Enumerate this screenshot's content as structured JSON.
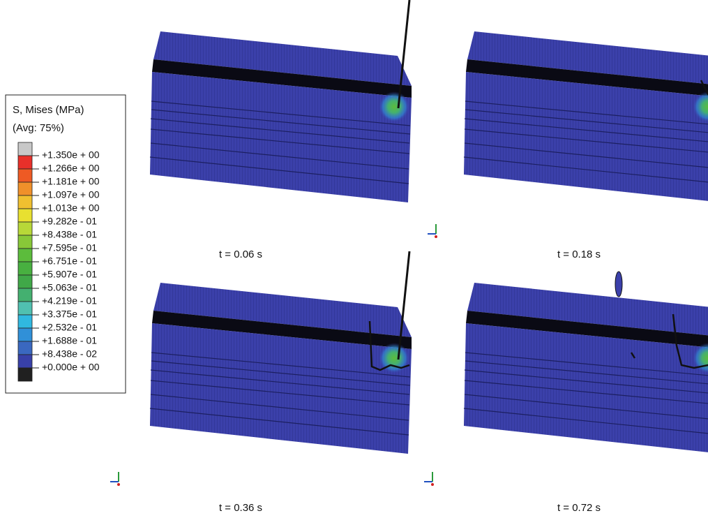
{
  "legend": {
    "title": "S, Mises (MPa)",
    "subtitle": "(Avg: 75%)",
    "labels": [
      "+1.350e + 00",
      "+1.266e + 00",
      "+1.181e + 00",
      "+1.097e + 00",
      "+1.013e + 00",
      "+9.282e - 01",
      "+8.438e - 01",
      "+7.595e - 01",
      "+6.751e - 01",
      "+5.907e - 01",
      "+5.063e - 01",
      "+4.219e - 01",
      "+3.375e - 01",
      "+2.532e - 01",
      "+1.688e - 01",
      "+8.438e - 02",
      "+0.000e + 00"
    ],
    "colors": [
      "#c8c8c8",
      "#e8302a",
      "#ee5a24",
      "#f0902a",
      "#f0c030",
      "#e8e030",
      "#b8d838",
      "#88c838",
      "#5cbc3c",
      "#48b040",
      "#40a848",
      "#44b070",
      "#50c0b0",
      "#30b8e0",
      "#3090d8",
      "#3a68c0",
      "#3840a8",
      "#202020"
    ]
  },
  "panels": [
    {
      "caption": "t = 0.06 s"
    },
    {
      "caption": "t = 0.18 s"
    },
    {
      "caption": "t = 0.36 s"
    },
    {
      "caption": "t = 0.72 s"
    }
  ]
}
